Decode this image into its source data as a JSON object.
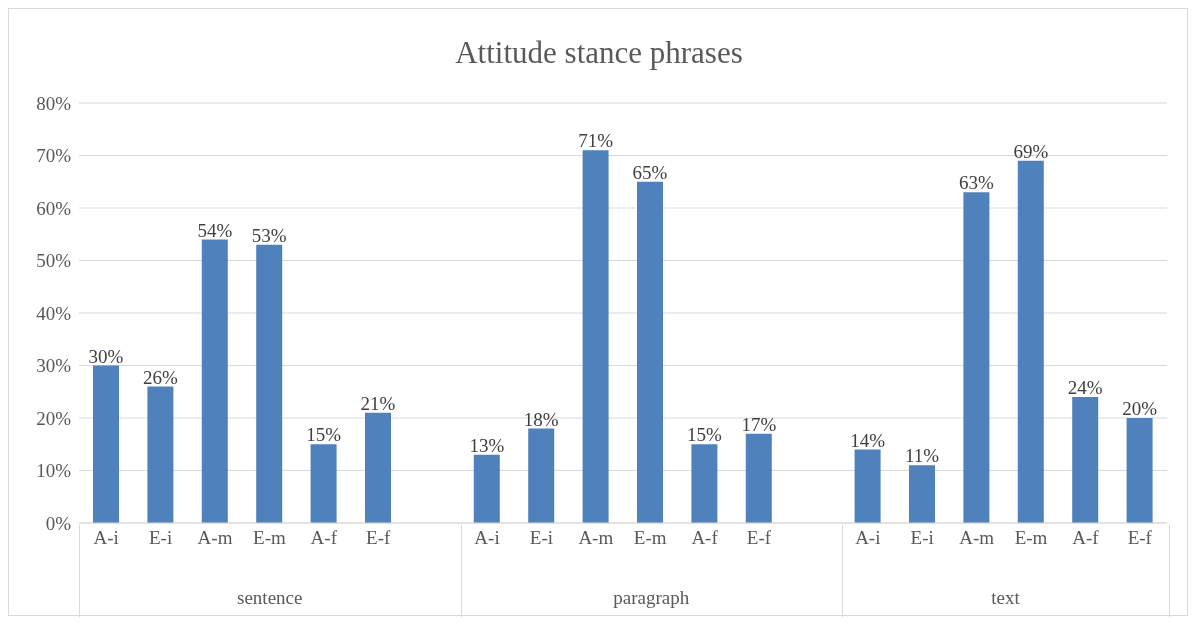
{
  "chart_data": {
    "type": "bar",
    "title": "Attitude stance phrases",
    "categories": [
      "A-i",
      "E-i",
      "A-m",
      "E-m",
      "A-f",
      "E-f",
      null,
      "A-i",
      "E-i",
      "A-m",
      "E-m",
      "A-f",
      "E-f",
      null,
      "A-i",
      "E-i",
      "A-m",
      "E-m",
      "A-f",
      "E-f"
    ],
    "values": [
      30,
      26,
      54,
      53,
      15,
      21,
      null,
      13,
      18,
      71,
      65,
      15,
      17,
      null,
      14,
      11,
      63,
      69,
      24,
      20
    ],
    "value_labels": [
      "30%",
      "26%",
      "54%",
      "53%",
      "15%",
      "21%",
      null,
      "13%",
      "18%",
      "71%",
      "65%",
      "15%",
      "17%",
      null,
      "14%",
      "11%",
      "63%",
      "69%",
      "24%",
      "20%"
    ],
    "color": "#4f81bd",
    "annotations": [
      "sentence",
      "paragraph",
      "text"
    ],
    "ylim": [
      0,
      80
    ],
    "yticks": [
      {
        "value": 0,
        "label": "0%"
      },
      {
        "value": 10,
        "label": "10%"
      },
      {
        "value": 20,
        "label": "20%"
      },
      {
        "value": 30,
        "label": "30%"
      },
      {
        "value": 40,
        "label": "40%"
      },
      {
        "value": 50,
        "label": "50%"
      },
      {
        "value": 60,
        "label": "60%"
      },
      {
        "value": 70,
        "label": "70%"
      },
      {
        "value": 80,
        "label": "80%"
      }
    ],
    "grid": "y",
    "legend": false
  }
}
